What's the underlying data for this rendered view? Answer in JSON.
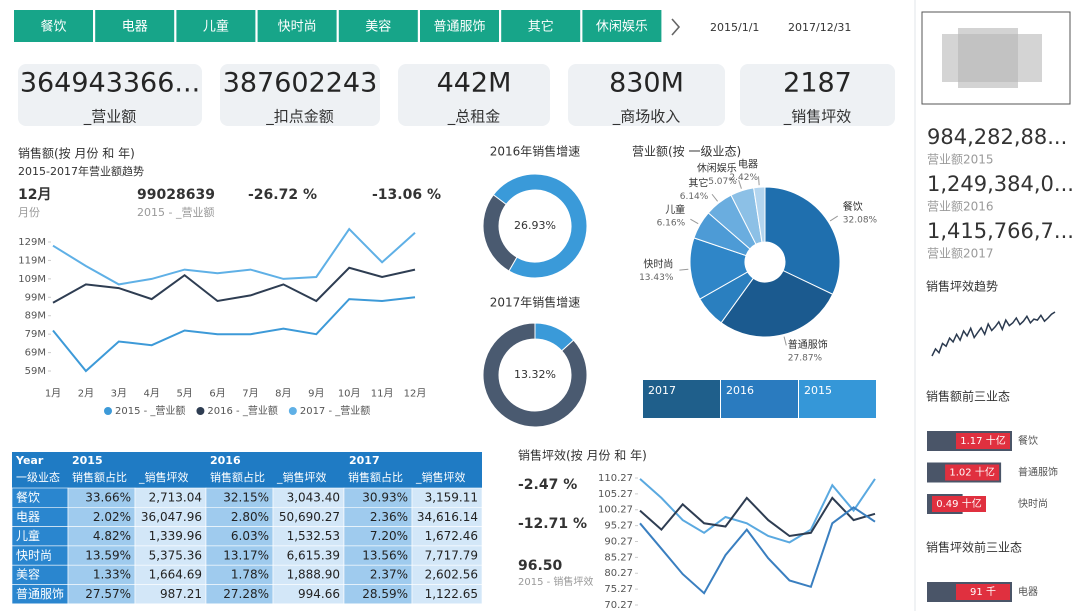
{
  "tabs": [
    "餐饮",
    "电器",
    "儿童",
    "快时尚",
    "美容",
    "普通服饰",
    "其它",
    "休闲娱乐"
  ],
  "date_range": [
    "2015/1/1",
    "2017/12/31"
  ],
  "kpis": [
    {
      "value": "364943366...",
      "label": "_营业额"
    },
    {
      "value": "387602243",
      "label": "_扣点金额"
    },
    {
      "value": "442M",
      "label": "_总租金"
    },
    {
      "value": "830M",
      "label": "_商场收入"
    },
    {
      "value": "2187",
      "label": "_销售坪效"
    }
  ],
  "sidebar_totals": [
    {
      "value": "984,282,88...",
      "label": "营业额2015"
    },
    {
      "value": "1,249,384,0...",
      "label": "营业额2016"
    },
    {
      "value": "1,415,766,7...",
      "label": "营业额2017"
    }
  ],
  "year_slicer": [
    "2017",
    "2016",
    "2015"
  ],
  "table": {
    "header": [
      "Year",
      "2015",
      "2016",
      "2017"
    ],
    "subheader": [
      "一级业态",
      "销售额占比",
      "_销售坪效",
      "销售额占比",
      "_销售坪效",
      "销售额占比",
      "_销售坪效"
    ],
    "rows": [
      [
        "餐饮",
        "33.66%",
        "2,713.04",
        "32.15%",
        "3,043.40",
        "30.93%",
        "3,159.11"
      ],
      [
        "电器",
        "2.02%",
        "36,047.96",
        "2.80%",
        "50,690.27",
        "2.36%",
        "34,616.14"
      ],
      [
        "儿童",
        "4.82%",
        "1,339.96",
        "6.03%",
        "1,532.53",
        "7.20%",
        "1,672.46"
      ],
      [
        "快时尚",
        "13.59%",
        "5,375.36",
        "13.17%",
        "6,615.39",
        "13.56%",
        "7,717.79"
      ],
      [
        "美容",
        "1.33%",
        "1,664.69",
        "1.78%",
        "1,888.90",
        "2.37%",
        "2,602.56"
      ],
      [
        "普通服饰",
        "27.57%",
        "987.21",
        "27.28%",
        "994.66",
        "28.59%",
        "1,122.65"
      ]
    ]
  },
  "chart_data": [
    {
      "type": "line",
      "title": "销售额(按 月份 和 年)",
      "subtitle": "2015-2017年营业额趋势",
      "callouts": [
        {
          "value": "12月",
          "label": "月份"
        },
        {
          "value": "99028639",
          "label": "2015 - _营业额"
        },
        {
          "value": "-26.72 %"
        },
        {
          "value": "-13.06 %"
        }
      ],
      "categories": [
        "1月",
        "2月",
        "3月",
        "4月",
        "5月",
        "6月",
        "7月",
        "8月",
        "9月",
        "10月",
        "11月",
        "12月"
      ],
      "ylim": [
        55,
        138
      ],
      "yticks": [
        {
          "value": 59,
          "label": "59M"
        },
        {
          "value": 69,
          "label": "69M"
        },
        {
          "value": 79,
          "label": "79M"
        },
        {
          "value": 89,
          "label": "89M"
        },
        {
          "value": 99,
          "label": "99M"
        },
        {
          "value": 109,
          "label": "109M"
        },
        {
          "value": 119,
          "label": "119M"
        },
        {
          "value": 129,
          "label": "129M"
        }
      ],
      "series": [
        {
          "name": "2015 - _营业额",
          "color": "#3d9ad8",
          "values": [
            81,
            59,
            75,
            73,
            81,
            79,
            79,
            82,
            79,
            98,
            97,
            99.03
          ]
        },
        {
          "name": "2016 - _营业额",
          "color": "#2e3d52",
          "values": [
            96,
            106,
            104,
            98,
            111,
            97,
            100,
            106,
            97,
            115,
            110,
            114
          ]
        },
        {
          "name": "2017 - _营业额",
          "color": "#5fb0e6",
          "values": [
            127,
            116,
            106,
            109,
            114,
            112,
            114,
            109,
            110,
            136,
            118,
            134
          ]
        }
      ]
    },
    {
      "type": "donut",
      "title": "2016年销售增速",
      "values": [
        26.93,
        73.07
      ],
      "value_labels": [
        "26.93%",
        null
      ],
      "colors": [
        "#4a5a70",
        "#3a9ad9"
      ]
    },
    {
      "type": "donut",
      "title": "2017年销售增速",
      "values": [
        13.32,
        86.68
      ],
      "value_labels": [
        "13.32%",
        null
      ],
      "colors": [
        "#3a9ad9",
        "#4a5a70"
      ]
    },
    {
      "type": "pie",
      "title": "营业额(按 一级业态)",
      "categories": [
        "餐饮",
        "普通服饰",
        null,
        "快时尚",
        "儿童",
        "其它",
        "休闲娱乐",
        "电器"
      ],
      "values": [
        32.08,
        27.87,
        6.83,
        13.43,
        6.16,
        6.14,
        5.07,
        2.42
      ],
      "value_labels": [
        "32.08%",
        "27.87%",
        null,
        "13.43%",
        "6.16%",
        "6.14%",
        "5.07%",
        "2.42%"
      ],
      "colors": [
        "#1f6fae",
        "#1b5a8f",
        "#2a7fbf",
        "#2f86c8",
        "#4d9bd6",
        "#6aaddf",
        "#8cc0e6",
        "#b3d5ef"
      ]
    },
    {
      "type": "line",
      "title": "销售坪效(按 月份 和 年)",
      "callouts": [
        {
          "value": "-2.47 %"
        },
        {
          "value": "-12.71 %"
        },
        {
          "value": "96.50",
          "label": "2015 - 销售坪效"
        }
      ],
      "ylim": [
        68,
        112
      ],
      "yticks": [
        110.27,
        105.27,
        100.27,
        95.27,
        90.27,
        85.27,
        80.27,
        75.27,
        70.27
      ],
      "series": [
        {
          "color": "#5aa9e0",
          "values": [
            110,
            104,
            97,
            93,
            98,
            96,
            92,
            90,
            94,
            108,
            100,
            110
          ]
        },
        {
          "color": "#2e3d52",
          "values": [
            100,
            94,
            102,
            96,
            95,
            104,
            97,
            92,
            93,
            104,
            97,
            99
          ]
        },
        {
          "color": "#3a7fc0",
          "values": [
            96,
            88,
            80,
            74,
            86,
            94,
            85,
            78,
            76,
            96,
            101,
            96.5
          ]
        }
      ]
    },
    {
      "type": "sparkline",
      "title": "销售坪效趋势",
      "color": "#2b3a4f",
      "values": [
        1720,
        1850,
        1780,
        1950,
        1900,
        2050,
        1980,
        2120,
        2010,
        2180,
        2090,
        2230,
        2060,
        2150,
        2240,
        2120,
        2310,
        2190,
        2260,
        2350,
        2210,
        2380,
        2280,
        2330,
        2420,
        2300,
        2360,
        2450,
        2330,
        2400,
        2380,
        2470,
        2360,
        2420,
        2490,
        2530
      ]
    },
    {
      "type": "bar",
      "title": "销售额前三业态",
      "categories": [
        "餐饮",
        "普通服饰",
        "快时尚"
      ],
      "values": [
        1.17,
        1.02,
        0.49
      ],
      "value_labels": [
        "1.17 十亿",
        "1.02 十亿",
        "0.49 十亿"
      ],
      "color": "#4a5568",
      "label_color": "#e0303f"
    },
    {
      "type": "bar",
      "title": "销售坪效前三业态",
      "categories": [
        "电器"
      ],
      "values": [
        91
      ],
      "value_labels": [
        "91 千"
      ],
      "color": "#4a5568",
      "label_color": "#e0303f"
    }
  ]
}
